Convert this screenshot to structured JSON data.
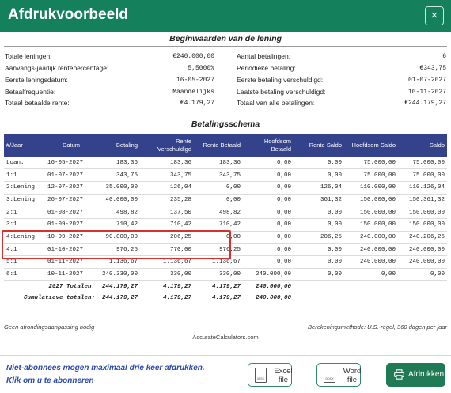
{
  "window": {
    "title": "Afdrukvoorbeeld",
    "close_label": "×"
  },
  "summary": {
    "title": "Beginwaarden van de lening",
    "left": [
      {
        "label": "Totale leningen:",
        "value": "€240.000,00"
      },
      {
        "label": "Aanvangs-jaarlijk rentepercentage:",
        "value": "5,5000%"
      },
      {
        "label": "Eerste leningsdatum:",
        "value": "16-05-2027"
      },
      {
        "label": "Betaalfrequentie:",
        "value": "Maandelijks"
      },
      {
        "label": "Totaal betaalde rente:",
        "value": "€4.179,27"
      }
    ],
    "right": [
      {
        "label": "Aantal betalingen:",
        "value": "6"
      },
      {
        "label": "Periodieke betaling:",
        "value": "€343,75"
      },
      {
        "label": "Eerste betaling verschuldigd:",
        "value": "01-07-2027"
      },
      {
        "label": "Laatste betaling verschuldigd:",
        "value": "10-11-2027"
      },
      {
        "label": "Totaal van alle betalingen:",
        "value": "€244.179,27"
      }
    ]
  },
  "schedule": {
    "title": "Betalingsschema",
    "headers": [
      "#/Jaar",
      "Datum",
      "Betaling",
      "Rente Verschuldigd",
      "Rente Betaald",
      "Hoofdsom Betaald",
      "Rente Saldo",
      "Hoofdsom Saldo",
      "Saldo"
    ],
    "rows": [
      [
        "Loan:",
        "16-05-2027",
        "183,36",
        "183,36",
        "183,36",
        "0,00",
        "0,00",
        "75.000,00",
        "75.000,00"
      ],
      [
        "1:1",
        "01-07-2027",
        "343,75",
        "343,75",
        "343,75",
        "0,00",
        "0,00",
        "75.000,00",
        "75.000,00"
      ],
      [
        "2:Lening",
        "12-07-2027",
        "35.000,00",
        "126,04",
        "0,00",
        "0,00",
        "126,04",
        "110.000,00",
        "110.126,04"
      ],
      [
        "3:Lening",
        "26-07-2027",
        "40.000,00",
        "235,28",
        "0,00",
        "0,00",
        "361,32",
        "150.000,00",
        "150.361,32"
      ],
      [
        "2:1",
        "01-08-2027",
        "498,82",
        "137,50",
        "498,82",
        "0,00",
        "0,00",
        "150.000,00",
        "150.000,00"
      ],
      [
        "3:1",
        "01-09-2027",
        "710,42",
        "710,42",
        "710,42",
        "0,00",
        "0,00",
        "150.000,00",
        "150.000,00"
      ],
      [
        "4:Lening",
        "10-09-2027",
        "90.000,00",
        "206,25",
        "0,00",
        "0,00",
        "206,25",
        "240.000,00",
        "240.206,25"
      ],
      [
        "4:1",
        "01-10-2027",
        "976,25",
        "770,00",
        "976,25",
        "0,00",
        "0,00",
        "240.000,00",
        "240.000,00"
      ],
      [
        "5:1",
        "01-11-2027",
        "1.136,67",
        "1.136,67",
        "1.136,67",
        "0,00",
        "0,00",
        "240.000,00",
        "240.000,00"
      ],
      [
        "6:1",
        "10-11-2027",
        "240.330,00",
        "330,00",
        "330,00",
        "240.000,00",
        "0,00",
        "0,00",
        "0,00"
      ]
    ],
    "totals": [
      {
        "label": "2027 Totalen:",
        "values": [
          "244.179,27",
          "4.179,27",
          "4.179,27",
          "240.000,00"
        ]
      },
      {
        "label": "Cumulatieve totalen:",
        "values": [
          "244.179,27",
          "4.179,27",
          "4.179,27",
          "240.000,00"
        ]
      }
    ],
    "highlight_color": "#d9302c"
  },
  "footer": {
    "left": "Geen afrondingsaanpassing nodig",
    "right": "Berekeningsmethode: U.S.-regel, 360 dagen per jaar",
    "center": "AccurateCalculators.com"
  },
  "bottom": {
    "note": "Niet-abonnees mogen maximaal drie keer afdrukken.",
    "subscribe_link": "Klik om u te abonneren",
    "excel_badge": "XLSX",
    "excel_label": "Excel\nfile",
    "word_badge": "DOCX",
    "word_label": "Word\nfile",
    "print_label": "Afdrukken"
  },
  "colors": {
    "titlebar": "#14805c",
    "table_header": "#34428c",
    "link": "#2a48b0",
    "print_button": "#1f7a55"
  }
}
